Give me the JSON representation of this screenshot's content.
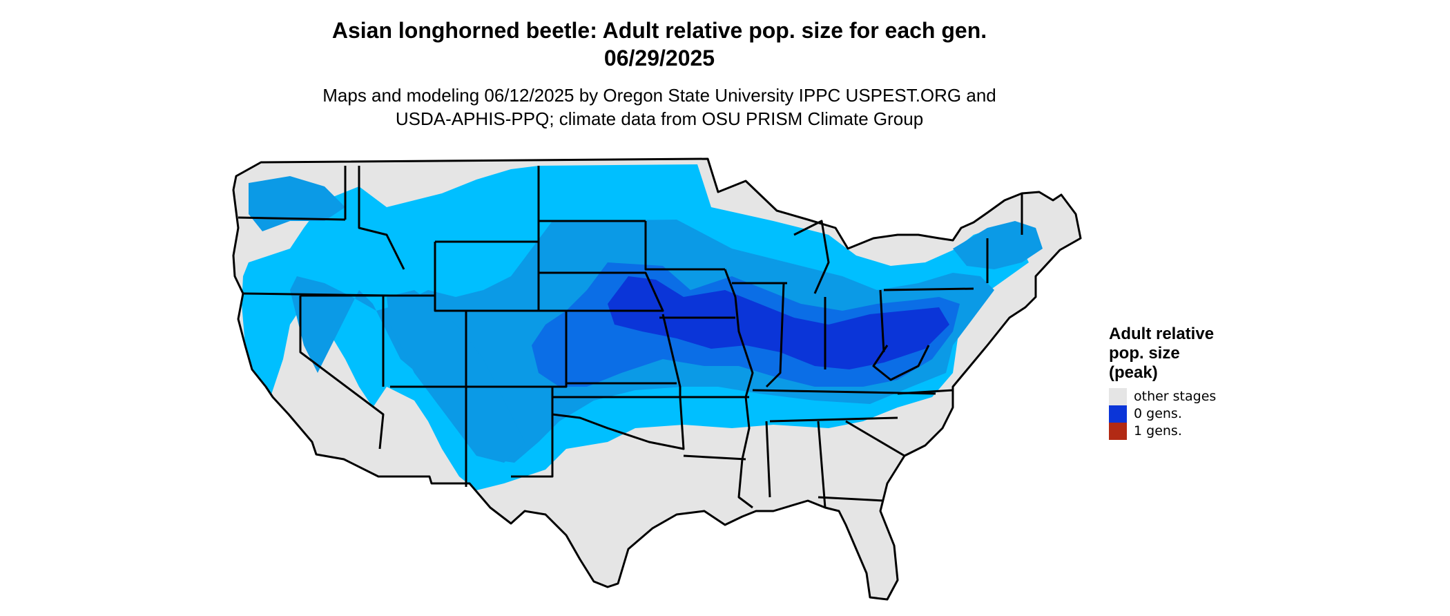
{
  "title_line1": "Asian longhorned beetle: Adult relative pop. size for each gen.",
  "title_line2": "06/29/2025",
  "subtitle_line1": "Maps and modeling 06/12/2025 by Oregon State University IPPC USPEST.ORG and",
  "subtitle_line2": "USDA-APHIS-PPQ; climate data from OSU PRISM Climate Group",
  "legend": {
    "title_line1": "Adult relative",
    "title_line2": "pop. size",
    "title_line3": "(peak)",
    "items": [
      {
        "label": "other stages",
        "color": "#e5e5e5"
      },
      {
        "label": "0 gens.",
        "color": "#0b35d8"
      },
      {
        "label": "1 gens.",
        "color": "#b22a14"
      }
    ]
  },
  "colors": {
    "land_other": "#e5e5e5",
    "adult_level_1": "#00bfff",
    "adult_level_2": "#0b9ae6",
    "adult_level_3": "#0b6ee6",
    "adult_level_4": "#0b35d8",
    "borders": "#000000"
  }
}
